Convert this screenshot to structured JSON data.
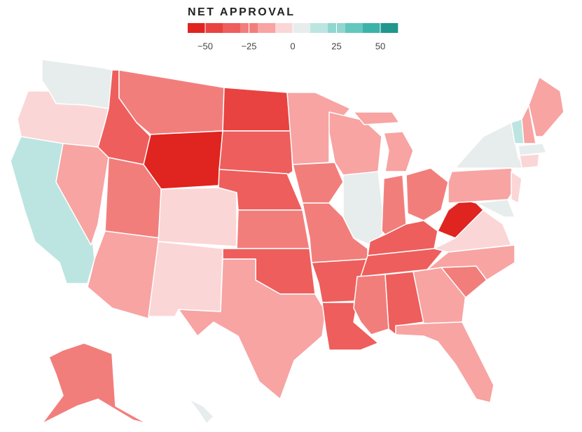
{
  "chart_data": {
    "type": "choropleth",
    "legend_title": "NET APPROVAL",
    "xlim": [
      -60,
      60
    ],
    "xticks": [
      {
        "value": -50,
        "label": "−50"
      },
      {
        "value": -25,
        "label": "−25"
      },
      0,
      25,
      50
    ],
    "colors": [
      "#e0241f",
      "#e84341",
      "#ee5e5c",
      "#f27e7c",
      "#f7a4a3",
      "#fbd6d6",
      "#e7ecec",
      "#bce5e1",
      "#91d7d0",
      "#64c7be",
      "#3cb3a8",
      "#1f978c"
    ],
    "values": [
      2,
      -8,
      12,
      -15,
      -40,
      -28,
      -52,
      -28,
      -15,
      -8,
      -10,
      -45,
      -35,
      -35,
      -25,
      -38,
      -17,
      -12,
      -25,
      -28,
      -33,
      -32,
      -16,
      3,
      -18,
      -30,
      -22,
      -33,
      -32,
      -27,
      -33,
      -14,
      -13,
      -28,
      -18,
      -8,
      -52,
      -15,
      3,
      8,
      -8,
      15,
      -15,
      -15,
      8,
      -8,
      -28,
      5
    ]
  }
}
